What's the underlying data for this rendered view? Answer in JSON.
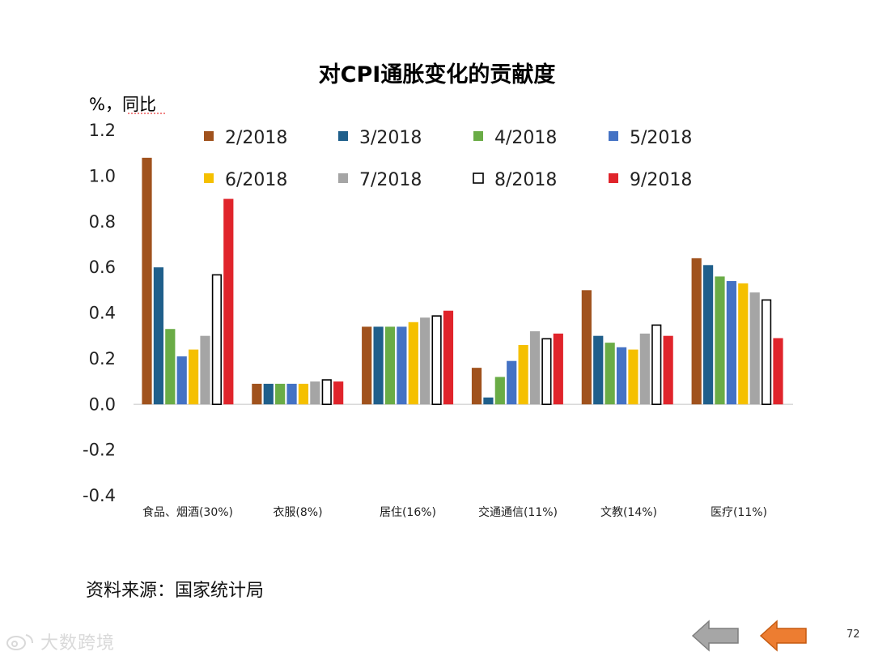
{
  "chart_data": {
    "type": "bar",
    "title": "对CPI通胀变化的贡献度",
    "ylabel": "%，同比",
    "xlabel": "",
    "ylim": [
      -0.4,
      1.2
    ],
    "yticks": [
      1.2,
      1.0,
      0.8,
      0.6,
      0.4,
      0.2,
      0.0,
      -0.2,
      -0.4
    ],
    "ytick_labels": [
      "1.2",
      "1.0",
      "0.8",
      "0.6",
      "0.4",
      "0.2",
      "0.0",
      "-0.2",
      "-0.4"
    ],
    "categories": [
      "食品、烟酒(30%)",
      "衣服(8%)",
      "居住(16%)",
      "交通通信(11%)",
      "文教(14%)",
      "医疗(11%)"
    ],
    "legend_position": "top",
    "series": [
      {
        "name": "2/2018",
        "color": "#a0521d",
        "values": [
          1.08,
          0.09,
          0.34,
          0.16,
          0.5,
          0.64
        ]
      },
      {
        "name": "3/2018",
        "color": "#1f5f8b",
        "values": [
          0.6,
          0.09,
          0.34,
          0.03,
          0.3,
          0.61
        ]
      },
      {
        "name": "4/2018",
        "color": "#6aac46",
        "values": [
          0.33,
          0.09,
          0.34,
          0.12,
          0.27,
          0.56
        ]
      },
      {
        "name": "5/2018",
        "color": "#4472c4",
        "values": [
          0.21,
          0.09,
          0.34,
          0.19,
          0.25,
          0.54
        ]
      },
      {
        "name": "6/2018",
        "color": "#f5c000",
        "values": [
          0.24,
          0.09,
          0.36,
          0.26,
          0.24,
          0.53
        ]
      },
      {
        "name": "7/2018",
        "color": "#a5a5a5",
        "values": [
          0.3,
          0.1,
          0.38,
          0.32,
          0.31,
          0.49
        ]
      },
      {
        "name": "8/2018",
        "color": "#ffffff",
        "stroke": "#000000",
        "values": [
          0.57,
          0.11,
          0.39,
          0.29,
          0.35,
          0.46
        ]
      },
      {
        "name": "9/2018",
        "color": "#e0242b",
        "values": [
          0.9,
          0.1,
          0.41,
          0.31,
          0.3,
          0.29
        ]
      }
    ]
  },
  "footer": {
    "source": "资料来源：国家统计局",
    "watermark": "大数跨境",
    "page_number": "72"
  },
  "colors": {
    "nav_back": "#a6a6a6",
    "nav_next": "#ed7d31",
    "axis": "#d9d9d9"
  }
}
